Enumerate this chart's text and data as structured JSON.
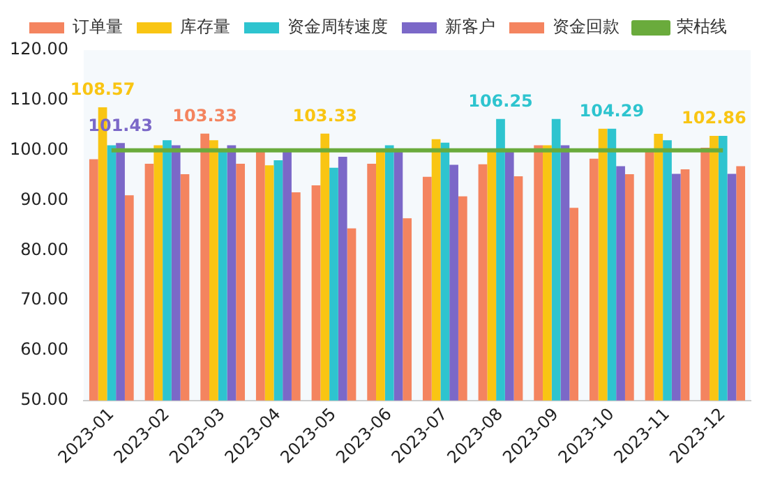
{
  "chart_data": {
    "type": "bar",
    "categories": [
      "2023-01",
      "2023-02",
      "2023-03",
      "2023-04",
      "2023-05",
      "2023-06",
      "2023-07",
      "2023-08",
      "2023-09",
      "2023-10",
      "2023-11",
      "2023-12"
    ],
    "series": [
      {
        "name": "订单量",
        "color": "#f4845f",
        "values": [
          98.2,
          97.3,
          103.33,
          100,
          93,
          97.3,
          94.7,
          97.2,
          101,
          98.3,
          100,
          100.5
        ],
        "value_labels": [
          null,
          null,
          "103.33",
          null,
          null,
          null,
          null,
          null,
          null,
          null,
          null,
          null
        ]
      },
      {
        "name": "库存量",
        "color": "#f9c513",
        "values": [
          108.57,
          101,
          102,
          97,
          103.33,
          100,
          102.2,
          100,
          101,
          104.29,
          103.3,
          102.86
        ],
        "value_labels": [
          "108.57",
          null,
          null,
          null,
          "103.33",
          null,
          null,
          null,
          null,
          null,
          null,
          "102.86"
        ]
      },
      {
        "name": "资金周转速度",
        "color": "#2ec4cf",
        "values": [
          101,
          102,
          100.3,
          98,
          96.5,
          101,
          101.5,
          106.25,
          106.25,
          104.29,
          102,
          102.86
        ],
        "value_labels": [
          null,
          null,
          null,
          null,
          null,
          null,
          null,
          "106.25",
          null,
          "104.29",
          null,
          null
        ]
      },
      {
        "name": "新客户",
        "color": "#7b68c8",
        "values": [
          101.43,
          101,
          101,
          100,
          98.7,
          100,
          97.1,
          100,
          101,
          96.8,
          95.3,
          95.3
        ],
        "value_labels": [
          "101.43",
          null,
          null,
          null,
          null,
          null,
          null,
          null,
          null,
          null,
          null,
          null
        ]
      },
      {
        "name": "资金回款",
        "color": "#f4845f",
        "values": [
          91,
          95.2,
          97.3,
          91.6,
          84.4,
          86.4,
          90.8,
          94.8,
          88.5,
          95.2,
          96.2,
          96.8
        ]
      },
      {
        "name": "荣枯线",
        "type": "line",
        "color": "#6aab3c",
        "values": [
          100,
          100,
          100,
          100,
          100,
          100,
          100,
          100,
          100,
          100,
          100,
          100
        ]
      }
    ],
    "ylim": [
      50,
      120
    ],
    "yticks": [
      {
        "value": 50,
        "label": "50.00"
      },
      {
        "value": 60,
        "label": "60.00"
      },
      {
        "value": 70,
        "label": "70.00"
      },
      {
        "value": 80,
        "label": "80.00"
      },
      {
        "value": 90,
        "label": "90.00"
      },
      {
        "value": 100,
        "label": "100.00"
      },
      {
        "value": 110,
        "label": "110.00"
      },
      {
        "value": 120,
        "label": "120.00"
      }
    ],
    "grid": false,
    "legend": "top",
    "marker": "none"
  }
}
